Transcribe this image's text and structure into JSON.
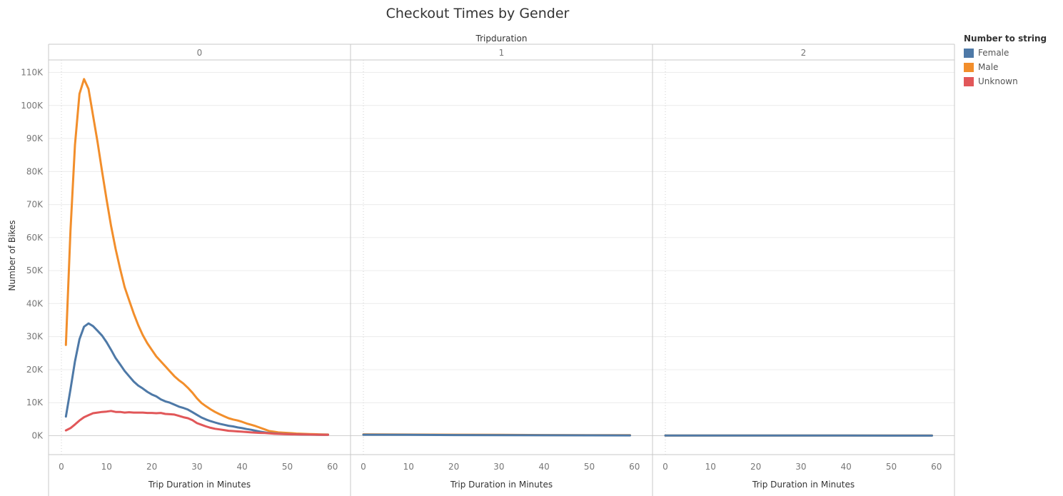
{
  "chart_data": {
    "type": "line",
    "title": "Checkout Times by Gender",
    "facet_header": "Tripduration",
    "facets": [
      "0",
      "1",
      "2"
    ],
    "xlabel": "Trip Duration in Minutes",
    "ylabel": "Number of Bikes",
    "xlim": [
      0,
      60
    ],
    "ylim": [
      0,
      110000
    ],
    "x_ticks": [
      0,
      10,
      20,
      30,
      40,
      50,
      60
    ],
    "y_ticks": [
      0,
      10000,
      20000,
      30000,
      40000,
      50000,
      60000,
      70000,
      80000,
      90000,
      100000,
      110000
    ],
    "y_tick_labels": [
      "0K",
      "10K",
      "20K",
      "30K",
      "40K",
      "50K",
      "60K",
      "70K",
      "80K",
      "90K",
      "100K",
      "110K"
    ],
    "grid": true,
    "legend": {
      "title": "Number to string",
      "position": "right",
      "items": [
        {
          "name": "Female",
          "color": "#4e79a7"
        },
        {
          "name": "Male",
          "color": "#f28e2b"
        },
        {
          "name": "Unknown",
          "color": "#e15759"
        }
      ]
    },
    "series": [
      {
        "facet": "0",
        "name": "Male",
        "color": "#f28e2b",
        "points": [
          [
            1,
            27500
          ],
          [
            2,
            62000
          ],
          [
            3,
            88000
          ],
          [
            4,
            103500
          ],
          [
            5,
            108000
          ],
          [
            6,
            105000
          ],
          [
            7,
            97000
          ],
          [
            8,
            89000
          ],
          [
            9,
            80000
          ],
          [
            10,
            71500
          ],
          [
            11,
            63500
          ],
          [
            12,
            56500
          ],
          [
            13,
            50500
          ],
          [
            14,
            45000
          ],
          [
            15,
            41000
          ],
          [
            16,
            37000
          ],
          [
            17,
            33500
          ],
          [
            18,
            30500
          ],
          [
            19,
            28000
          ],
          [
            20,
            26000
          ],
          [
            21,
            24000
          ],
          [
            22,
            22500
          ],
          [
            23,
            21000
          ],
          [
            24,
            19500
          ],
          [
            25,
            18000
          ],
          [
            26,
            16800
          ],
          [
            27,
            15800
          ],
          [
            28,
            14500
          ],
          [
            29,
            13000
          ],
          [
            30,
            11300
          ],
          [
            31,
            9900
          ],
          [
            32,
            8900
          ],
          [
            33,
            8000
          ],
          [
            34,
            7200
          ],
          [
            35,
            6500
          ],
          [
            36,
            5900
          ],
          [
            37,
            5300
          ],
          [
            38,
            4900
          ],
          [
            39,
            4600
          ],
          [
            40,
            4200
          ],
          [
            41,
            3700
          ],
          [
            42,
            3300
          ],
          [
            43,
            2900
          ],
          [
            44,
            2400
          ],
          [
            45,
            1900
          ],
          [
            46,
            1400
          ],
          [
            47,
            1200
          ],
          [
            48,
            1000
          ],
          [
            49,
            900
          ],
          [
            50,
            850
          ],
          [
            51,
            750
          ],
          [
            52,
            650
          ],
          [
            53,
            600
          ],
          [
            54,
            550
          ],
          [
            55,
            500
          ],
          [
            56,
            450
          ],
          [
            57,
            400
          ],
          [
            58,
            380
          ],
          [
            59,
            350
          ]
        ]
      },
      {
        "facet": "0",
        "name": "Female",
        "color": "#4e79a7",
        "points": [
          [
            1,
            5800
          ],
          [
            2,
            14000
          ],
          [
            3,
            22500
          ],
          [
            4,
            29200
          ],
          [
            5,
            33000
          ],
          [
            6,
            34000
          ],
          [
            7,
            33200
          ],
          [
            8,
            31800
          ],
          [
            9,
            30300
          ],
          [
            10,
            28300
          ],
          [
            11,
            26000
          ],
          [
            12,
            23500
          ],
          [
            13,
            21600
          ],
          [
            14,
            19600
          ],
          [
            15,
            18000
          ],
          [
            16,
            16400
          ],
          [
            17,
            15200
          ],
          [
            18,
            14300
          ],
          [
            19,
            13300
          ],
          [
            20,
            12500
          ],
          [
            21,
            11900
          ],
          [
            22,
            11000
          ],
          [
            23,
            10400
          ],
          [
            24,
            10000
          ],
          [
            25,
            9400
          ],
          [
            26,
            8800
          ],
          [
            27,
            8400
          ],
          [
            28,
            7900
          ],
          [
            29,
            7100
          ],
          [
            30,
            6300
          ],
          [
            31,
            5500
          ],
          [
            32,
            4900
          ],
          [
            33,
            4400
          ],
          [
            34,
            4000
          ],
          [
            35,
            3600
          ],
          [
            36,
            3300
          ],
          [
            37,
            3000
          ],
          [
            38,
            2800
          ],
          [
            39,
            2500
          ],
          [
            40,
            2300
          ],
          [
            41,
            2000
          ],
          [
            42,
            1800
          ],
          [
            43,
            1500
          ],
          [
            44,
            1200
          ],
          [
            45,
            1000
          ],
          [
            46,
            800
          ],
          [
            47,
            700
          ],
          [
            48,
            620
          ],
          [
            49,
            550
          ],
          [
            50,
            500
          ],
          [
            51,
            450
          ],
          [
            52,
            400
          ],
          [
            53,
            370
          ],
          [
            54,
            340
          ],
          [
            55,
            320
          ],
          [
            56,
            300
          ],
          [
            57,
            280
          ],
          [
            58,
            260
          ],
          [
            59,
            250
          ]
        ]
      },
      {
        "facet": "0",
        "name": "Unknown",
        "color": "#e15759",
        "points": [
          [
            1,
            1600
          ],
          [
            2,
            2300
          ],
          [
            3,
            3400
          ],
          [
            4,
            4600
          ],
          [
            5,
            5600
          ],
          [
            6,
            6200
          ],
          [
            7,
            6800
          ],
          [
            8,
            7000
          ],
          [
            9,
            7200
          ],
          [
            10,
            7300
          ],
          [
            11,
            7500
          ],
          [
            12,
            7200
          ],
          [
            13,
            7200
          ],
          [
            14,
            7000
          ],
          [
            15,
            7100
          ],
          [
            16,
            7000
          ],
          [
            17,
            7000
          ],
          [
            18,
            7000
          ],
          [
            19,
            6900
          ],
          [
            20,
            6900
          ],
          [
            21,
            6800
          ],
          [
            22,
            6900
          ],
          [
            23,
            6600
          ],
          [
            24,
            6500
          ],
          [
            25,
            6400
          ],
          [
            26,
            6000
          ],
          [
            27,
            5600
          ],
          [
            28,
            5300
          ],
          [
            29,
            4700
          ],
          [
            30,
            3800
          ],
          [
            31,
            3300
          ],
          [
            32,
            2800
          ],
          [
            33,
            2400
          ],
          [
            34,
            2100
          ],
          [
            35,
            1900
          ],
          [
            36,
            1700
          ],
          [
            37,
            1500
          ],
          [
            38,
            1400
          ],
          [
            39,
            1300
          ],
          [
            40,
            1200
          ],
          [
            41,
            1100
          ],
          [
            42,
            1000
          ],
          [
            43,
            900
          ],
          [
            44,
            850
          ],
          [
            45,
            800
          ],
          [
            46,
            700
          ],
          [
            47,
            600
          ],
          [
            48,
            550
          ],
          [
            49,
            500
          ],
          [
            50,
            450
          ],
          [
            51,
            420
          ],
          [
            52,
            400
          ],
          [
            53,
            380
          ],
          [
            54,
            360
          ],
          [
            55,
            340
          ],
          [
            56,
            320
          ],
          [
            57,
            300
          ],
          [
            58,
            290
          ],
          [
            59,
            280
          ]
        ]
      },
      {
        "facet": "1",
        "name": "Male",
        "color": "#f28e2b",
        "points": [
          [
            0,
            400
          ],
          [
            10,
            350
          ],
          [
            20,
            300
          ],
          [
            30,
            250
          ],
          [
            40,
            200
          ],
          [
            50,
            180
          ],
          [
            59,
            150
          ]
        ]
      },
      {
        "facet": "1",
        "name": "Female",
        "color": "#4e79a7",
        "points": [
          [
            0,
            300
          ],
          [
            10,
            250
          ],
          [
            20,
            200
          ],
          [
            30,
            150
          ],
          [
            40,
            120
          ],
          [
            50,
            100
          ],
          [
            59,
            80
          ]
        ]
      },
      {
        "facet": "2",
        "name": "Male",
        "color": "#f28e2b",
        "points": [
          [
            0,
            60
          ],
          [
            10,
            60
          ],
          [
            20,
            55
          ],
          [
            30,
            50
          ],
          [
            40,
            45
          ],
          [
            50,
            40
          ],
          [
            59,
            40
          ]
        ]
      },
      {
        "facet": "2",
        "name": "Female",
        "color": "#4e79a7",
        "points": [
          [
            0,
            50
          ],
          [
            10,
            50
          ],
          [
            20,
            45
          ],
          [
            30,
            40
          ],
          [
            40,
            35
          ],
          [
            50,
            30
          ],
          [
            59,
            30
          ]
        ]
      }
    ]
  }
}
